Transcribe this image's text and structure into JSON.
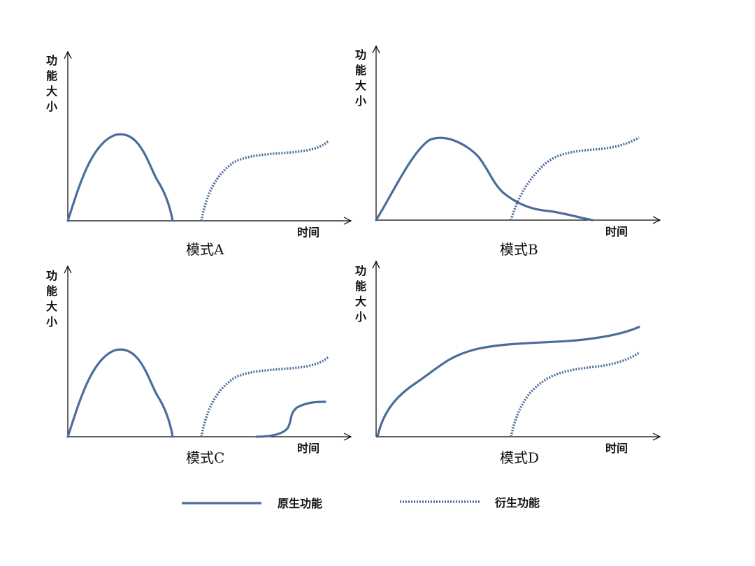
{
  "axis": {
    "y_label_chars": [
      "功",
      "能",
      "大",
      "小"
    ],
    "x_label": "时间"
  },
  "panels": [
    {
      "id": "A",
      "title": "模式A"
    },
    {
      "id": "B",
      "title": "模式B"
    },
    {
      "id": "C",
      "title": "模式C"
    },
    {
      "id": "D",
      "title": "模式D"
    }
  ],
  "legend": {
    "solid_label": "原生功能",
    "dotted_label": "衍生功能"
  },
  "colors": {
    "curve": "#4a6d9c",
    "axis": "#000000"
  }
}
